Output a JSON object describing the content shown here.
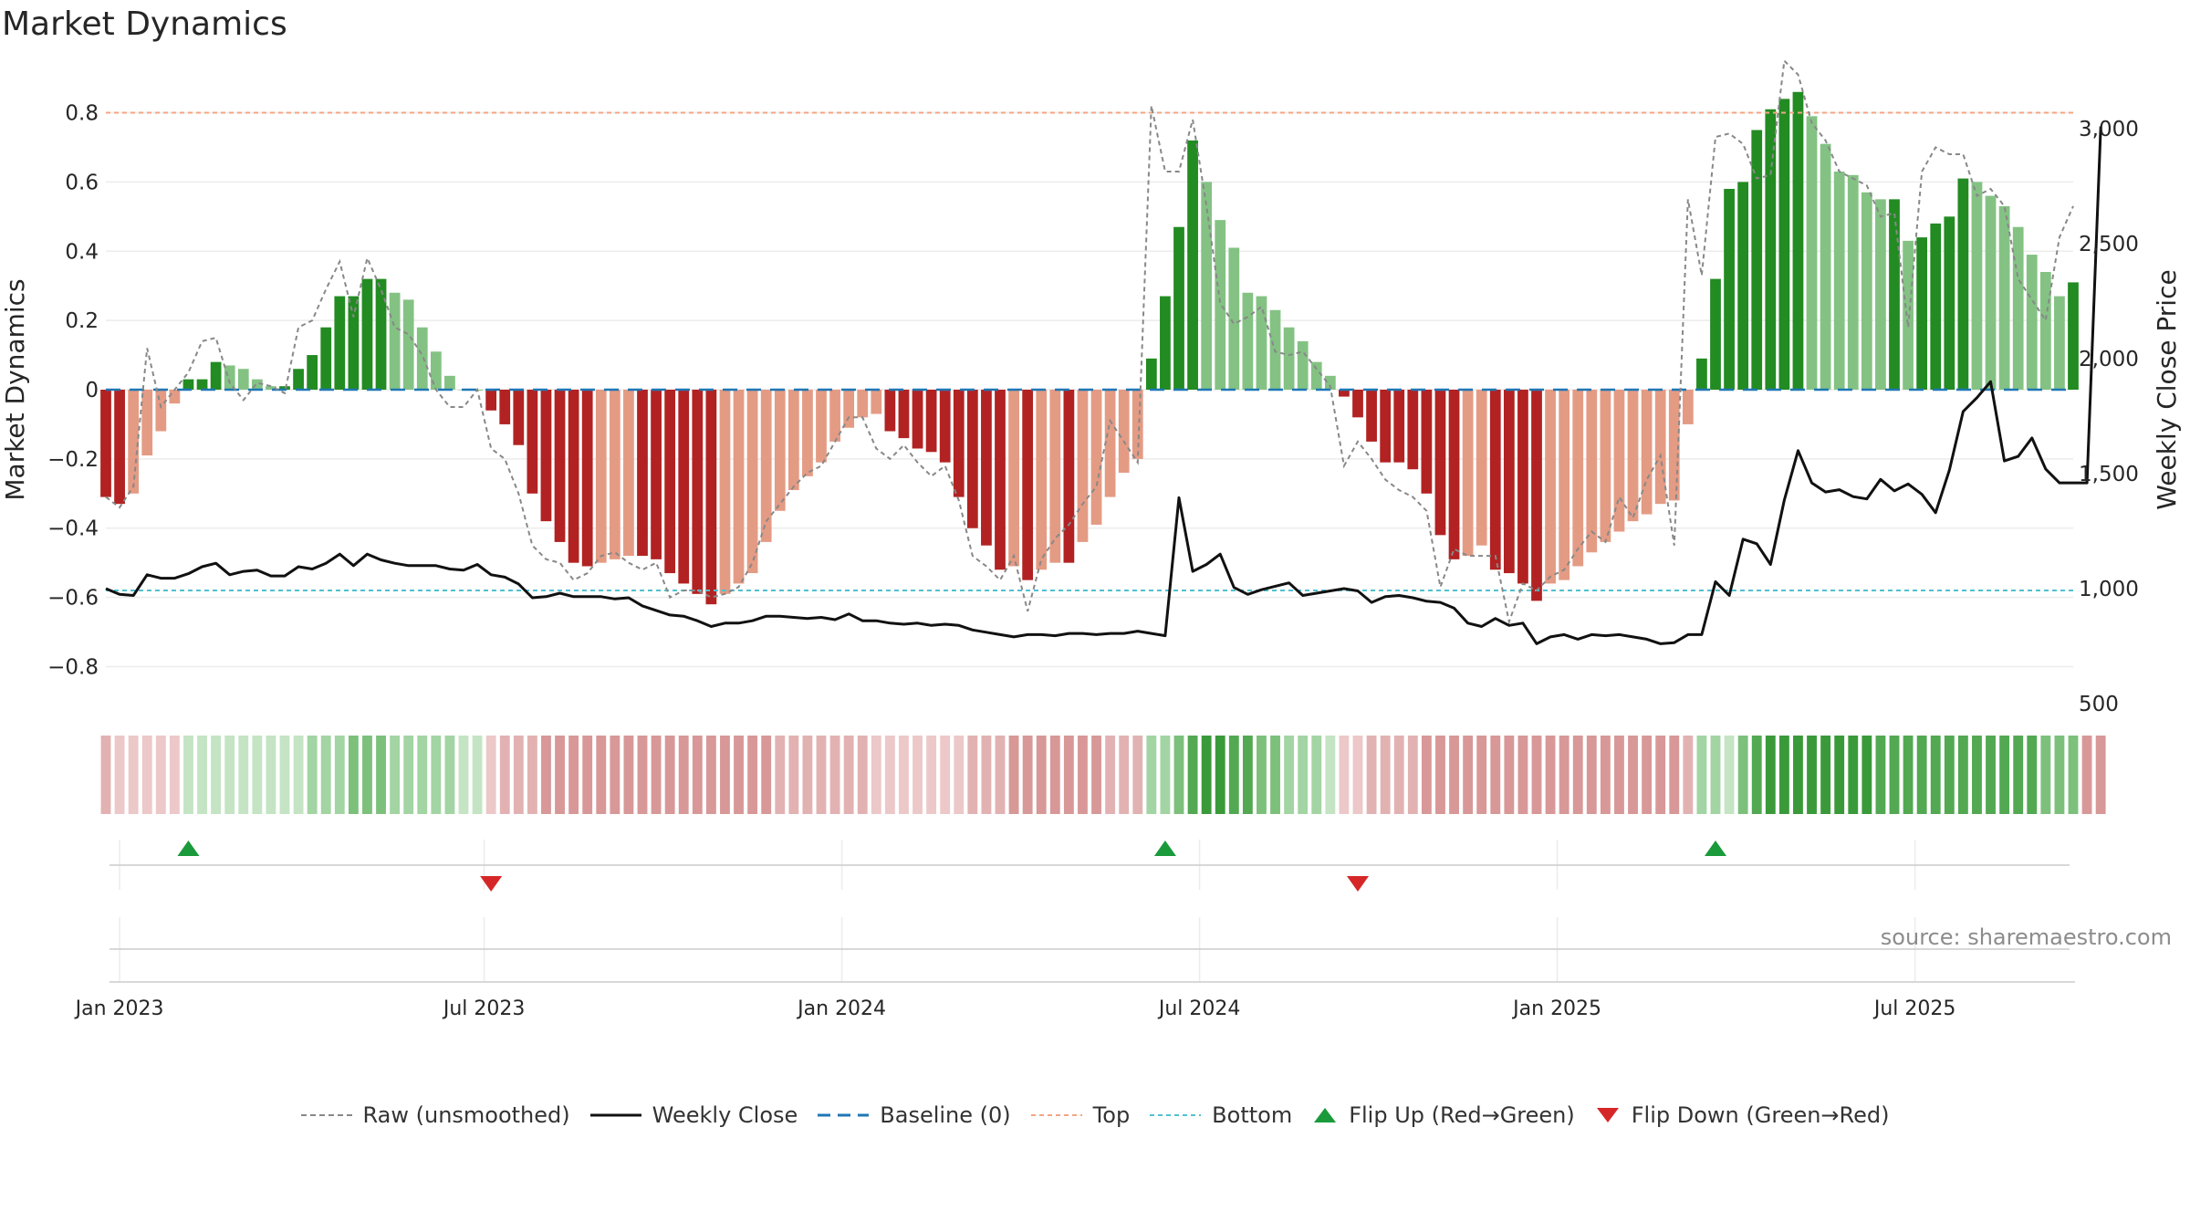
{
  "title": "Market Dynamics",
  "source": "source: sharemaestro.com",
  "colors": {
    "dark_green": "#228b22",
    "light_green": "#84c284",
    "dark_red": "#b22222",
    "light_red": "#e49b84",
    "top_line": "#f4a582",
    "bottom_line": "#4fc1d0",
    "baseline": "#1f77b4",
    "raw": "#888888",
    "close": "#111111",
    "flip_up": "#1a9a3a",
    "flip_down": "#d62728"
  },
  "chart_data": {
    "type": "bar",
    "title": "Market Dynamics",
    "ylabel": "Market Dynamics",
    "y2label": "Weekly Close Price",
    "ylim": [
      -0.92,
      0.92
    ],
    "y2lim": [
      480,
      3250
    ],
    "yticks": [
      "0.8",
      "0.6",
      "0.4",
      "0.2",
      "0",
      "−0.2",
      "−0.4",
      "−0.6",
      "−0.8"
    ],
    "y2ticks": [
      "3,000",
      "2,500",
      "2,000",
      "1,500",
      "1,000",
      "500"
    ],
    "xticks": [
      "Jan 2023",
      "Jul 2023",
      "Jan 2024",
      "Jul 2024",
      "Jan 2025",
      "Jul 2025"
    ],
    "top_level": 0.8,
    "bottom_level": -0.58,
    "baseline": 0,
    "smoothed": [
      -0.31,
      -0.33,
      -0.3,
      -0.19,
      -0.12,
      -0.04,
      0.03,
      0.03,
      0.08,
      0.07,
      0.06,
      0.03,
      0.01,
      0.01,
      0.06,
      0.1,
      0.18,
      0.27,
      0.27,
      0.32,
      0.32,
      0.28,
      0.26,
      0.18,
      0.11,
      0.04,
      0.0,
      0.0,
      -0.06,
      -0.1,
      -0.16,
      -0.3,
      -0.38,
      -0.44,
      -0.5,
      -0.51,
      -0.5,
      -0.49,
      -0.48,
      -0.48,
      -0.49,
      -0.53,
      -0.56,
      -0.59,
      -0.62,
      -0.59,
      -0.56,
      -0.53,
      -0.44,
      -0.35,
      -0.29,
      -0.25,
      -0.21,
      -0.15,
      -0.11,
      -0.08,
      -0.07,
      -0.12,
      -0.14,
      -0.17,
      -0.18,
      -0.21,
      -0.31,
      -0.4,
      -0.45,
      -0.52,
      -0.51,
      -0.55,
      -0.52,
      -0.5,
      -0.5,
      -0.44,
      -0.39,
      -0.31,
      -0.24,
      -0.2,
      0.09,
      0.27,
      0.47,
      0.72,
      0.6,
      0.49,
      0.41,
      0.28,
      0.27,
      0.23,
      0.18,
      0.14,
      0.08,
      0.04,
      -0.02,
      -0.08,
      -0.15,
      -0.21,
      -0.21,
      -0.23,
      -0.3,
      -0.42,
      -0.49,
      -0.48,
      -0.45,
      -0.52,
      -0.53,
      -0.56,
      -0.61,
      -0.56,
      -0.55,
      -0.51,
      -0.47,
      -0.44,
      -0.41,
      -0.38,
      -0.36,
      -0.33,
      -0.32,
      -0.1,
      0.09,
      0.32,
      0.58,
      0.6,
      0.75,
      0.81,
      0.84,
      0.86,
      0.79,
      0.71,
      0.63,
      0.62,
      0.57,
      0.55,
      0.55,
      0.43,
      0.44,
      0.48,
      0.5,
      0.61,
      0.6,
      0.56,
      0.53,
      0.47,
      0.39,
      0.34,
      0.27,
      0.31
    ],
    "raw": [
      -0.31,
      -0.34,
      -0.28,
      0.12,
      -0.05,
      0.0,
      0.05,
      0.14,
      0.15,
      0.02,
      -0.03,
      0.02,
      0.01,
      -0.01,
      0.18,
      0.2,
      0.29,
      0.37,
      0.21,
      0.38,
      0.29,
      0.18,
      0.16,
      0.1,
      0.0,
      -0.05,
      -0.05,
      0.0,
      -0.17,
      -0.2,
      -0.3,
      -0.45,
      -0.49,
      -0.5,
      -0.55,
      -0.53,
      -0.48,
      -0.47,
      -0.5,
      -0.52,
      -0.5,
      -0.6,
      -0.58,
      -0.58,
      -0.6,
      -0.59,
      -0.57,
      -0.5,
      -0.38,
      -0.33,
      -0.28,
      -0.24,
      -0.22,
      -0.15,
      -0.08,
      -0.08,
      -0.17,
      -0.2,
      -0.16,
      -0.21,
      -0.25,
      -0.22,
      -0.32,
      -0.48,
      -0.51,
      -0.55,
      -0.48,
      -0.64,
      -0.49,
      -0.43,
      -0.39,
      -0.33,
      -0.28,
      -0.09,
      -0.15,
      -0.21,
      0.82,
      0.63,
      0.63,
      0.78,
      0.53,
      0.25,
      0.19,
      0.21,
      0.24,
      0.11,
      0.1,
      0.11,
      0.06,
      0.01,
      -0.22,
      -0.15,
      -0.2,
      -0.26,
      -0.29,
      -0.31,
      -0.35,
      -0.57,
      -0.46,
      -0.48,
      -0.48,
      -0.48,
      -0.67,
      -0.56,
      -0.58,
      -0.54,
      -0.52,
      -0.46,
      -0.41,
      -0.44,
      -0.31,
      -0.37,
      -0.26,
      -0.19,
      -0.45,
      0.55,
      0.33,
      0.73,
      0.74,
      0.71,
      0.61,
      0.62,
      0.95,
      0.91,
      0.77,
      0.72,
      0.63,
      0.61,
      0.59,
      0.5,
      0.51,
      0.18,
      0.63,
      0.7,
      0.68,
      0.68,
      0.56,
      0.58,
      0.53,
      0.32,
      0.26,
      0.2,
      0.44,
      0.53
    ],
    "weekly_close": [
      1000,
      975,
      970,
      1060,
      1045,
      1045,
      1065,
      1095,
      1110,
      1060,
      1075,
      1080,
      1055,
      1055,
      1095,
      1085,
      1110,
      1150,
      1100,
      1150,
      1125,
      1110,
      1100,
      1100,
      1100,
      1085,
      1080,
      1105,
      1060,
      1050,
      1020,
      960,
      965,
      980,
      965,
      965,
      965,
      955,
      960,
      925,
      905,
      885,
      880,
      860,
      835,
      850,
      850,
      860,
      880,
      880,
      875,
      870,
      875,
      865,
      890,
      860,
      860,
      850,
      845,
      850,
      840,
      845,
      840,
      820,
      810,
      800,
      790,
      800,
      800,
      795,
      805,
      805,
      800,
      805,
      805,
      815,
      805,
      795,
      1395,
      1075,
      1105,
      1150,
      1005,
      975,
      995,
      1010,
      1025,
      970,
      980,
      990,
      1000,
      990,
      940,
      965,
      970,
      960,
      945,
      940,
      915,
      850,
      835,
      870,
      840,
      850,
      760,
      790,
      800,
      780,
      800,
      795,
      800,
      790,
      780,
      760,
      765,
      800,
      800,
      1030,
      970,
      1215,
      1195,
      1105,
      1385,
      1600,
      1460,
      1420,
      1430,
      1400,
      1390,
      1475,
      1425,
      1455,
      1410,
      1330,
      1515,
      1770,
      1830,
      1900,
      1555,
      1575,
      1655,
      1520,
      1460,
      1460,
      1460,
      3010
    ],
    "zone_levels": [
      2,
      1,
      1,
      1,
      1,
      1,
      1,
      1,
      1,
      1,
      1,
      1,
      1,
      1,
      1,
      2,
      2,
      2,
      3,
      3,
      3,
      2,
      2,
      2,
      2,
      2,
      1,
      1,
      1,
      2,
      2,
      2,
      3,
      3,
      3,
      3,
      3,
      3,
      3,
      3,
      3,
      3,
      3,
      3,
      3,
      3,
      3,
      3,
      3,
      2,
      2,
      2,
      2,
      2,
      2,
      2,
      1,
      1,
      1,
      1,
      1,
      1,
      1,
      2,
      2,
      2,
      3,
      3,
      3,
      3,
      3,
      3,
      3,
      2,
      2,
      2,
      2,
      2,
      3,
      4,
      5,
      5,
      4,
      4,
      3,
      3,
      2,
      2,
      2,
      1,
      1,
      1,
      2,
      2,
      2,
      2,
      3,
      3,
      3,
      3,
      3,
      3,
      3,
      3,
      3,
      3,
      3,
      3,
      3,
      3,
      3,
      3,
      3,
      3,
      3,
      2,
      2,
      2,
      1,
      3,
      4,
      5,
      5,
      5,
      5,
      5,
      5,
      5,
      5,
      4,
      4,
      4,
      4,
      4,
      4,
      4,
      4,
      4,
      4,
      4,
      4,
      3,
      3,
      3,
      3,
      3
    ],
    "flip_up_index": [
      6,
      77,
      117
    ],
    "flip_down_index": [
      28,
      91
    ]
  },
  "legend": [
    {
      "label": "Raw (unsmoothed)",
      "icon": "dashed-line-icon"
    },
    {
      "label": "Weekly Close",
      "icon": "solid-line-icon"
    },
    {
      "label": "Baseline (0)",
      "icon": "dashed-line-icon"
    },
    {
      "label": "Top",
      "icon": "dashed-line-icon"
    },
    {
      "label": "Bottom",
      "icon": "dashed-line-icon"
    },
    {
      "label": "Flip Up (Red→Green)",
      "icon": "triangle-up-icon"
    },
    {
      "label": "Flip Down (Green→Red)",
      "icon": "triangle-down-icon"
    }
  ]
}
